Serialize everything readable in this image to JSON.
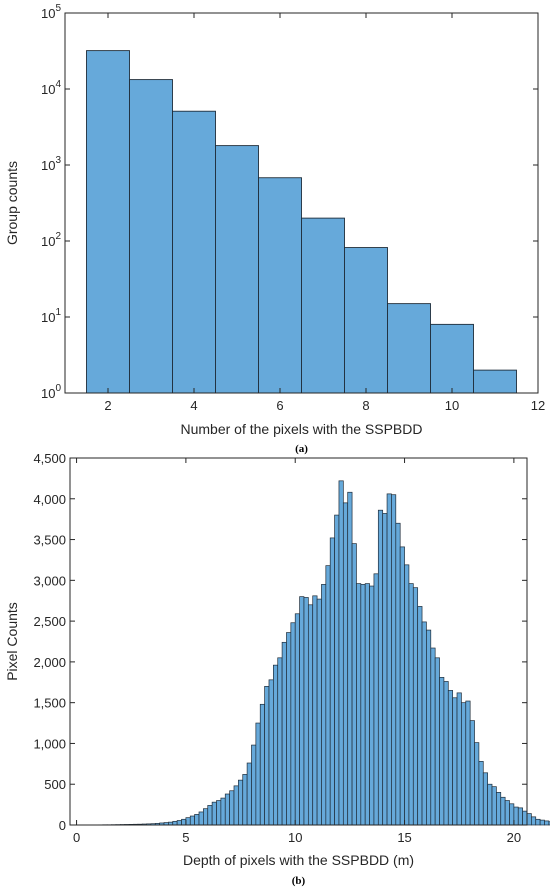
{
  "chart_data": [
    {
      "type": "bar",
      "subtype": "histogram",
      "y_scale": "log",
      "xlabel": "Number of the pixels with the SSPBDD",
      "ylabel": "Group counts",
      "caption": "(a)",
      "xlim": [
        1,
        12
      ],
      "ylim": [
        1,
        100000
      ],
      "x_ticks": [
        2,
        4,
        6,
        8,
        10,
        12
      ],
      "y_ticks": [
        {
          "value": 1,
          "base": "10",
          "exp": "0"
        },
        {
          "value": 10,
          "base": "10",
          "exp": "1"
        },
        {
          "value": 100,
          "base": "10",
          "exp": "2"
        },
        {
          "value": 1000,
          "base": "10",
          "exp": "3"
        },
        {
          "value": 10000,
          "base": "10",
          "exp": "4"
        },
        {
          "value": 100000,
          "base": "10",
          "exp": "5"
        }
      ],
      "bin_width": 1,
      "x": [
        2,
        3,
        4,
        5,
        6,
        7,
        8,
        9,
        10,
        11
      ],
      "values": [
        32000,
        13300,
        5100,
        1800,
        680,
        200,
        82,
        15,
        8,
        2
      ],
      "bar_color": "#66a9da",
      "edge_color": "#1f2d3a",
      "grid": false
    },
    {
      "type": "bar",
      "subtype": "histogram",
      "xlabel": "Depth of pixels with the SSPBDD (m)",
      "ylabel": "Pixel Counts",
      "caption": "(b)",
      "xlim": [
        -0.3,
        20.6
      ],
      "ylim": [
        0,
        4500
      ],
      "x_ticks": [
        0,
        5,
        10,
        15,
        20
      ],
      "y_ticks": [
        {
          "value": 0,
          "label": "0"
        },
        {
          "value": 500,
          "label": "500"
        },
        {
          "value": 1000,
          "label": "1,000"
        },
        {
          "value": 1500,
          "label": "1,500"
        },
        {
          "value": 2000,
          "label": "2,000"
        },
        {
          "value": 2500,
          "label": "2,500"
        },
        {
          "value": 3000,
          "label": "3,000"
        },
        {
          "value": 3500,
          "label": "3,500"
        },
        {
          "value": 4000,
          "label": "4,000"
        },
        {
          "value": 4500,
          "label": "4,500"
        }
      ],
      "bin_start": 1,
      "bin_width": 0.2,
      "values": [
        2,
        3,
        3,
        4,
        5,
        6,
        7,
        8,
        9,
        10,
        12,
        14,
        16,
        20,
        25,
        30,
        35,
        45,
        55,
        70,
        90,
        110,
        130,
        160,
        200,
        240,
        280,
        300,
        330,
        380,
        420,
        480,
        550,
        620,
        760,
        980,
        1250,
        1480,
        1700,
        1780,
        1960,
        2050,
        2240,
        2360,
        2480,
        2590,
        2800,
        2790,
        2700,
        2810,
        2770,
        2950,
        3180,
        3520,
        3800,
        4220,
        3950,
        4080,
        3450,
        2960,
        2950,
        2960,
        2930,
        3080,
        3860,
        3820,
        4060,
        4050,
        3700,
        3410,
        3190,
        2960,
        2910,
        2680,
        2490,
        2390,
        2170,
        2050,
        1810,
        1760,
        1650,
        1560,
        1620,
        1500,
        1520,
        1280,
        1010,
        780,
        640,
        500,
        470,
        400,
        340,
        300,
        260,
        220,
        210,
        170,
        140,
        100,
        70,
        60,
        50,
        40,
        30
      ],
      "bar_color": "#66a9da",
      "edge_color": "#1f2d3a",
      "grid": false
    }
  ]
}
